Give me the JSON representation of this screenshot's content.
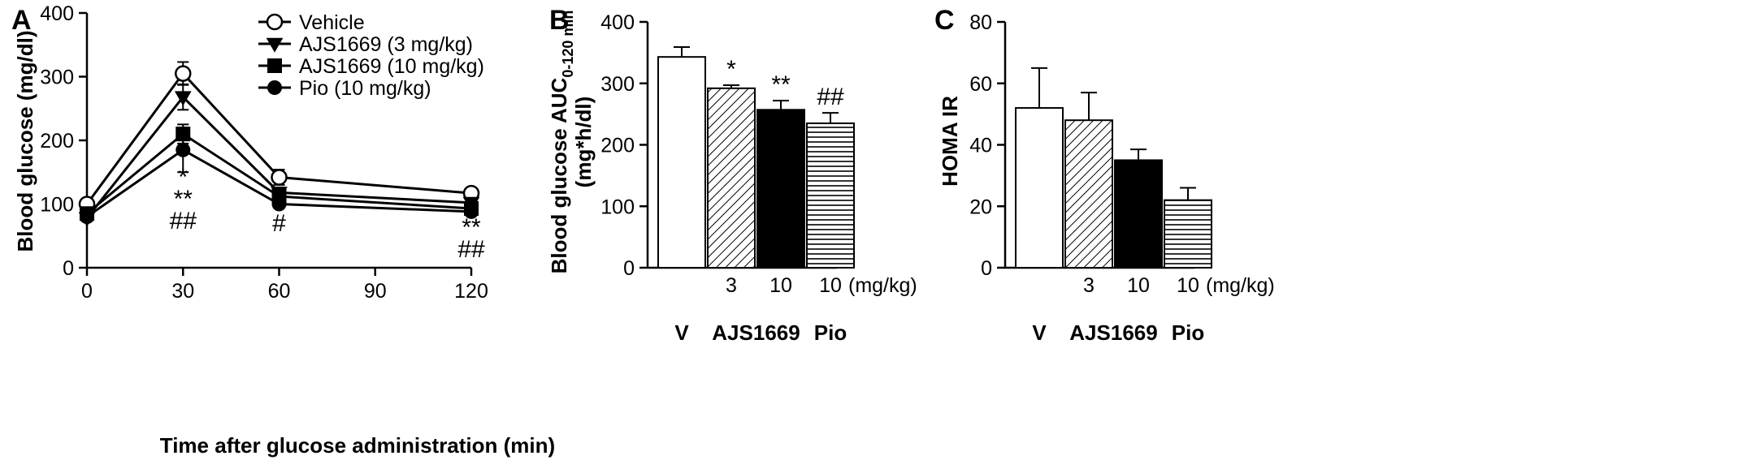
{
  "chart_data": [
    {
      "panel": "A",
      "type": "line",
      "xlabel": "Time after glucose administration (min)",
      "ylabel": "Blood glucose (mg/dl)",
      "xlim": [
        0,
        120
      ],
      "ylim": [
        0,
        400
      ],
      "xticks": [
        0,
        30,
        60,
        90,
        120
      ],
      "yticks": [
        0,
        100,
        200,
        300,
        400
      ],
      "legend_position": "top-center",
      "x": [
        0,
        30,
        60,
        120
      ],
      "series": [
        {
          "name": "Vehicle",
          "marker": "circle-open",
          "values": [
            100,
            305,
            142,
            117
          ],
          "errors": [
            5,
            18,
            12,
            5
          ]
        },
        {
          "name": "AJS1669 (3 mg/kg)",
          "marker": "triangle-down",
          "values": [
            78,
            268,
            118,
            102
          ],
          "errors": [
            5,
            20,
            8,
            5
          ]
        },
        {
          "name": "AJS1669 (10 mg/kg)",
          "marker": "square",
          "values": [
            85,
            210,
            112,
            93
          ],
          "errors": [
            5,
            15,
            8,
            5
          ]
        },
        {
          "name": "Pio (10 mg/kg)",
          "marker": "circle-filled",
          "values": [
            80,
            185,
            100,
            88
          ],
          "errors": [
            5,
            35,
            6,
            5
          ]
        }
      ],
      "annotations": [
        {
          "x": 30,
          "lines": [
            "*",
            "**",
            "##"
          ]
        },
        {
          "x": 60,
          "lines": [
            "#"
          ]
        },
        {
          "x": 120,
          "lines": [
            "**",
            "##"
          ]
        }
      ]
    },
    {
      "panel": "B",
      "type": "bar",
      "ylabel_main": "Blood glucose AUC",
      "ylabel_sub": "0-120 min",
      "ylabel_unit": "(mg*h/dl)",
      "ylim": [
        0,
        400
      ],
      "yticks": [
        0,
        100,
        200,
        300,
        400
      ],
      "categories": [
        "",
        "3",
        "10",
        "10"
      ],
      "unit_label": "(mg/kg)",
      "groups": [
        "V",
        "AJS1669",
        "Pio"
      ],
      "values": [
        343,
        292,
        257,
        235
      ],
      "errors": [
        16,
        5,
        15,
        17
      ],
      "fills": [
        "white",
        "diagonal",
        "black",
        "horizontal"
      ],
      "significance": [
        "",
        "*",
        "**",
        "##"
      ]
    },
    {
      "panel": "C",
      "type": "bar",
      "ylabel": "HOMA IR",
      "ylim": [
        0,
        80
      ],
      "yticks": [
        0,
        20,
        40,
        60,
        80
      ],
      "categories": [
        "",
        "3",
        "10",
        "10"
      ],
      "unit_label": "(mg/kg)",
      "groups": [
        "V",
        "AJS1669",
        "Pio"
      ],
      "values": [
        52,
        48,
        35,
        22
      ],
      "errors": [
        13,
        9,
        3.5,
        4
      ],
      "fills": [
        "white",
        "diagonal",
        "black",
        "horizontal"
      ],
      "significance": [
        "",
        "",
        "",
        ""
      ]
    }
  ]
}
